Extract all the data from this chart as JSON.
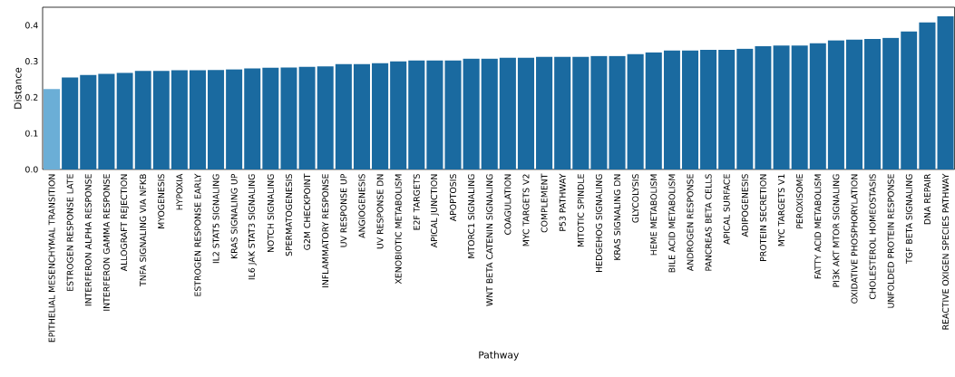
{
  "chart_data": {
    "type": "bar",
    "xlabel": "Pathway",
    "ylabel": "Distance",
    "categories": [
      "EPITHELIAL MESENCHYMAL TRANSITION",
      "ESTROGEN RESPONSE LATE",
      "INTERFERON ALPHA RESPONSE",
      "INTERFERON GAMMA RESPONSE",
      "ALLOGRAFT REJECTION",
      "TNFA SIGNALING VIA NFKB",
      "MYOGENESIS",
      "HYPOXIA",
      "ESTROGEN RESPONSE EARLY",
      "IL2 STAT5 SIGNALING",
      "KRAS SIGNALING UP",
      "IL6 JAK STAT3 SIGNALING",
      "NOTCH SIGNALING",
      "SPERMATOGENESIS",
      "G2M CHECKPOINT",
      "INFLAMMATORY RESPONSE",
      "UV RESPONSE UP",
      "ANGIOGENESIS",
      "UV RESPONSE DN",
      "XENOBIOTIC METABOLISM",
      "E2F TARGETS",
      "APICAL JUNCTION",
      "APOPTOSIS",
      "MTORC1 SIGNALING",
      "WNT BETA CATENIN SIGNALING",
      "COAGULATION",
      "MYC TARGETS V2",
      "COMPLEMENT",
      "P53 PATHWAY",
      "MITOTIC SPINDLE",
      "HEDGEHOG SIGNALING",
      "KRAS SIGNALING DN",
      "GLYCOLYSIS",
      "HEME METABOLISM",
      "BILE ACID METABOLISM",
      "ANDROGEN RESPONSE",
      "PANCREAS BETA CELLS",
      "APICAL SURFACE",
      "ADIPOGENESIS",
      "PROTEIN SECRETION",
      "MYC TARGETS V1",
      "PEROXISOME",
      "FATTY ACID METABOLISM",
      "PI3K AKT MTOR SIGNALING",
      "OXIDATIVE PHOSPHORYLATION",
      "CHOLESTEROL HOMEOSTASIS",
      "UNFOLDED PROTEIN RESPONSE",
      "TGF BETA SIGNALING",
      "DNA REPAIR",
      "REACTIVE OXIGEN SPECIES PATHWAY"
    ],
    "values": [
      0.223,
      0.255,
      0.262,
      0.265,
      0.268,
      0.273,
      0.273,
      0.275,
      0.275,
      0.276,
      0.278,
      0.28,
      0.282,
      0.283,
      0.285,
      0.286,
      0.292,
      0.292,
      0.295,
      0.3,
      0.302,
      0.302,
      0.302,
      0.307,
      0.307,
      0.31,
      0.31,
      0.312,
      0.312,
      0.312,
      0.315,
      0.315,
      0.32,
      0.325,
      0.33,
      0.33,
      0.332,
      0.332,
      0.335,
      0.342,
      0.344,
      0.344,
      0.35,
      0.358,
      0.36,
      0.362,
      0.365,
      0.383,
      0.408,
      0.425
    ],
    "colors": [
      "#6baed6",
      "#1a6aa0",
      "#1a6aa0",
      "#1a6aa0",
      "#1a6aa0",
      "#1a6aa0",
      "#1a6aa0",
      "#1a6aa0",
      "#1a6aa0",
      "#1a6aa0",
      "#1a6aa0",
      "#1a6aa0",
      "#1a6aa0",
      "#1a6aa0",
      "#1a6aa0",
      "#1a6aa0",
      "#1a6aa0",
      "#1a6aa0",
      "#1a6aa0",
      "#1a6aa0",
      "#1a6aa0",
      "#1a6aa0",
      "#1a6aa0",
      "#1a6aa0",
      "#1a6aa0",
      "#1a6aa0",
      "#1a6aa0",
      "#1a6aa0",
      "#1a6aa0",
      "#1a6aa0",
      "#1a6aa0",
      "#1a6aa0",
      "#1a6aa0",
      "#1a6aa0",
      "#1a6aa0",
      "#1a6aa0",
      "#1a6aa0",
      "#1a6aa0",
      "#1a6aa0",
      "#1a6aa0",
      "#1a6aa0",
      "#1a6aa0",
      "#1a6aa0",
      "#1a6aa0",
      "#1a6aa0",
      "#1a6aa0",
      "#1a6aa0",
      "#1a6aa0",
      "#1a6aa0",
      "#1a6aa0"
    ],
    "ylim": [
      0,
      0.45
    ],
    "yticks": [
      {
        "value": 0,
        "label": "0.0"
      },
      0.1,
      0.2,
      0.3,
      0.4
    ]
  }
}
